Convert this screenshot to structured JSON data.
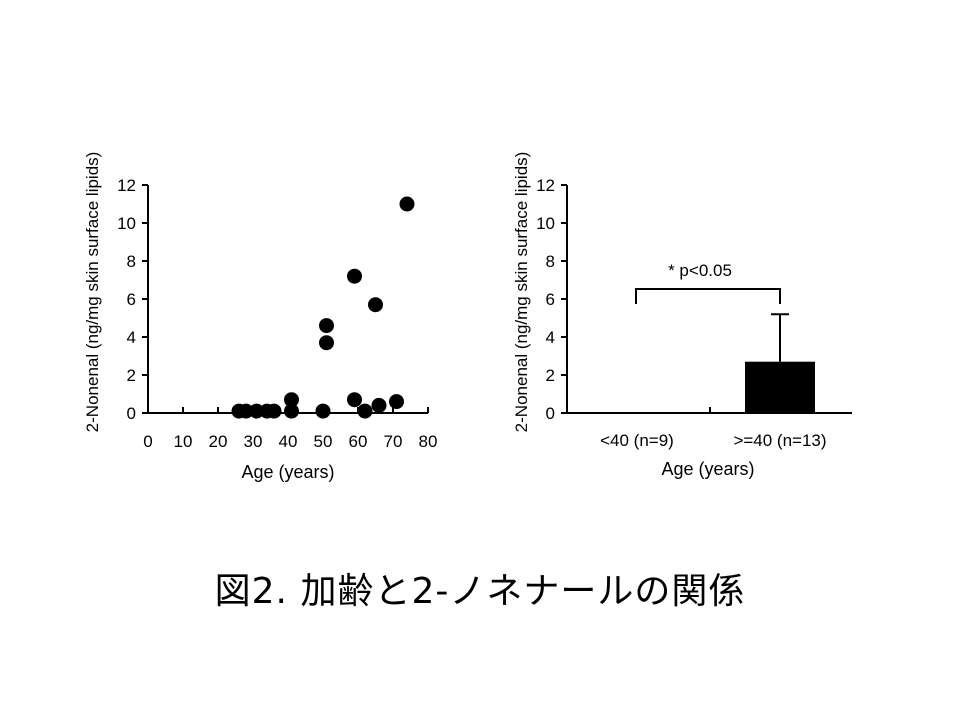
{
  "caption": "図2.  加齢と2-ノネナールの関係",
  "chart_data": [
    {
      "type": "scatter",
      "ylabel": "2-Nonenal (ng/mg skin surface lipids)",
      "xlabel": "Age (years)",
      "xlim": [
        0,
        80
      ],
      "ylim": [
        0,
        12
      ],
      "xticks": [
        "0",
        "10",
        "20",
        "30",
        "40",
        "50",
        "60",
        "70",
        "80"
      ],
      "yticks": [
        "0",
        "2",
        "4",
        "6",
        "8",
        "10",
        "12"
      ],
      "points": [
        {
          "x": 26,
          "y": 0.1
        },
        {
          "x": 28,
          "y": 0.1
        },
        {
          "x": 31,
          "y": 0.1
        },
        {
          "x": 34,
          "y": 0.1
        },
        {
          "x": 36,
          "y": 0.1
        },
        {
          "x": 41,
          "y": 0.1
        },
        {
          "x": 41,
          "y": 0.7
        },
        {
          "x": 50,
          "y": 0.1
        },
        {
          "x": 51,
          "y": 4.6
        },
        {
          "x": 51,
          "y": 3.7
        },
        {
          "x": 59,
          "y": 7.2
        },
        {
          "x": 59,
          "y": 0.7
        },
        {
          "x": 62,
          "y": 0.1
        },
        {
          "x": 65,
          "y": 5.7
        },
        {
          "x": 66,
          "y": 0.4
        },
        {
          "x": 71,
          "y": 0.6
        },
        {
          "x": 74,
          "y": 11.0
        }
      ]
    },
    {
      "type": "bar",
      "ylabel": "2-Nonenal (ng/mg skin surface lipids)",
      "xlabel": "Age (years)",
      "ylim": [
        0,
        12
      ],
      "yticks": [
        "0",
        "2",
        "4",
        "6",
        "8",
        "10",
        "12"
      ],
      "categories": [
        "<40 (n=9)",
        ">=40 (n=13)"
      ],
      "values": [
        0,
        2.7
      ],
      "errors": [
        0,
        2.5
      ],
      "annotation": "* p<0.05"
    }
  ]
}
